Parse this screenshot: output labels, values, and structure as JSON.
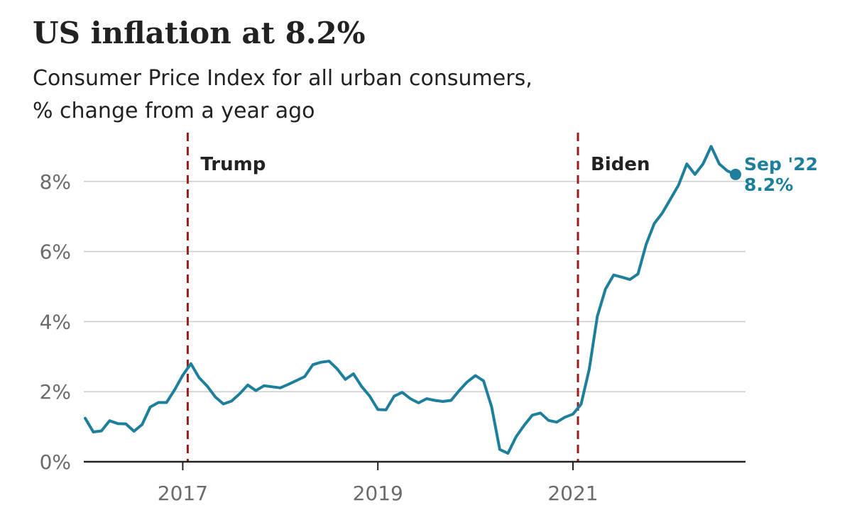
{
  "title": "US inflation at 8.2%",
  "subtitle_line1": "Consumer Price Index for all urban consumers,",
  "subtitle_line2": "% change from a year ago",
  "colors": {
    "line": "#1d7f9c",
    "marker": "#9b1c1c",
    "grid": "#cccccc",
    "axis": "#222222"
  },
  "chart_data": {
    "type": "line",
    "title": "US inflation at 8.2%",
    "subtitle": "Consumer Price Index for all urban consumers, % change from a year ago",
    "xlabel": "",
    "ylabel": "",
    "x_range": [
      "2016-01",
      "2022-09"
    ],
    "ylim": [
      0,
      9.5
    ],
    "y_ticks": [
      0,
      2,
      4,
      6,
      8
    ],
    "y_tick_labels": [
      "0%",
      "2%",
      "4%",
      "6%",
      "8%"
    ],
    "x_ticks": [
      "2017-01",
      "2019-01",
      "2021-01"
    ],
    "x_tick_labels": [
      "2017",
      "2019",
      "2021"
    ],
    "grid": true,
    "series": [
      {
        "name": "",
        "x": [
          "2016-01",
          "2016-02",
          "2016-03",
          "2016-04",
          "2016-05",
          "2016-06",
          "2016-07",
          "2016-08",
          "2016-09",
          "2016-10",
          "2016-11",
          "2016-12",
          "2017-01",
          "2017-02",
          "2017-03",
          "2017-04",
          "2017-05",
          "2017-06",
          "2017-07",
          "2017-08",
          "2017-09",
          "2017-10",
          "2017-11",
          "2017-12",
          "2018-01",
          "2018-02",
          "2018-03",
          "2018-04",
          "2018-05",
          "2018-06",
          "2018-07",
          "2018-08",
          "2018-09",
          "2018-10",
          "2018-11",
          "2018-12",
          "2019-01",
          "2019-02",
          "2019-03",
          "2019-04",
          "2019-05",
          "2019-06",
          "2019-07",
          "2019-08",
          "2019-09",
          "2019-10",
          "2019-11",
          "2019-12",
          "2020-01",
          "2020-02",
          "2020-03",
          "2020-04",
          "2020-05",
          "2020-06",
          "2020-07",
          "2020-08",
          "2020-09",
          "2020-10",
          "2020-11",
          "2020-12",
          "2021-01",
          "2021-02",
          "2021-03",
          "2021-04",
          "2021-05",
          "2021-06",
          "2021-07",
          "2021-08",
          "2021-09",
          "2021-10",
          "2021-11",
          "2021-12",
          "2022-01",
          "2022-02",
          "2022-03",
          "2022-04",
          "2022-05",
          "2022-06",
          "2022-07",
          "2022-08",
          "2022-09"
        ],
        "values": [
          1.24,
          0.85,
          0.88,
          1.17,
          1.09,
          1.08,
          0.87,
          1.06,
          1.56,
          1.69,
          1.69,
          2.05,
          2.47,
          2.8,
          2.4,
          2.16,
          1.85,
          1.65,
          1.73,
          1.94,
          2.19,
          2.03,
          2.17,
          2.14,
          2.11,
          2.21,
          2.32,
          2.43,
          2.77,
          2.84,
          2.87,
          2.65,
          2.35,
          2.51,
          2.15,
          1.87,
          1.49,
          1.48,
          1.87,
          1.98,
          1.8,
          1.68,
          1.8,
          1.75,
          1.72,
          1.75,
          2.03,
          2.28,
          2.46,
          2.31,
          1.56,
          0.35,
          0.24,
          0.71,
          1.04,
          1.33,
          1.39,
          1.18,
          1.13,
          1.27,
          1.36,
          1.64,
          2.64,
          4.15,
          4.93,
          5.33,
          5.27,
          5.2,
          5.36,
          6.2,
          6.8,
          7.1,
          7.5,
          7.9,
          8.5,
          8.2,
          8.5,
          9.0,
          8.5,
          8.3,
          8.2
        ]
      }
    ],
    "annotations": [
      {
        "label": "Trump",
        "x": "2017-01-20"
      },
      {
        "label": "Biden",
        "x": "2021-01-20"
      }
    ],
    "end_label": {
      "date": "Sep '22",
      "value": "8.2%"
    }
  }
}
